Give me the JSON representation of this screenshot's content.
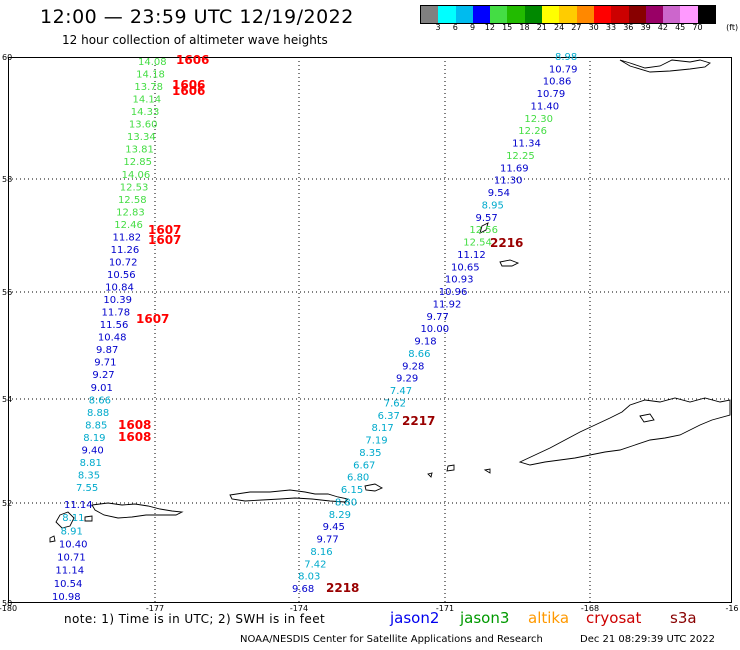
{
  "title": "12:00 — 23:59 UTC 12/19/2022",
  "subtitle": "12 hour collection of altimeter wave heights",
  "color_scale": {
    "unit": "(ft)",
    "bins": [
      {
        "label": "3",
        "color": "#808080"
      },
      {
        "label": "6",
        "color": "#00ffff"
      },
      {
        "label": "9",
        "color": "#00bbee"
      },
      {
        "label": "12",
        "color": "#0000ff"
      },
      {
        "label": "15",
        "color": "#44dd44"
      },
      {
        "label": "18",
        "color": "#22bb00"
      },
      {
        "label": "21",
        "color": "#008800"
      },
      {
        "label": "24",
        "color": "#ffff00"
      },
      {
        "label": "27",
        "color": "#ffcc00"
      },
      {
        "label": "30",
        "color": "#ff8800"
      },
      {
        "label": "33",
        "color": "#ff0000"
      },
      {
        "label": "36",
        "color": "#cc0000"
      },
      {
        "label": "39",
        "color": "#880000"
      },
      {
        "label": "42",
        "color": "#990066"
      },
      {
        "label": "45",
        "color": "#cc66cc"
      },
      {
        "label": "70",
        "color": "#ff99ff"
      },
      {
        "label": "",
        "color": "#000000"
      }
    ]
  },
  "axes": {
    "lat_labels": [
      "60",
      "58",
      "56",
      "54",
      "52",
      "50"
    ],
    "lon_labels": [
      "-180",
      "-177",
      "-174",
      "-171",
      "-168",
      "-16"
    ]
  },
  "track_colors": {
    "green": "#44dd44",
    "blue": "#0000cc",
    "cyan": "#00aacc",
    "red": "#ff0000",
    "darkred": "#990000"
  },
  "track_west_upper": [
    {
      "v": "14.08",
      "c": "green"
    },
    {
      "v": "14.18",
      "c": "green"
    },
    {
      "v": "13.78",
      "c": "green"
    },
    {
      "v": "14.14",
      "c": "green"
    },
    {
      "v": "14.33",
      "c": "green"
    },
    {
      "v": "13.60",
      "c": "green"
    },
    {
      "v": "13.34",
      "c": "green"
    },
    {
      "v": "13.81",
      "c": "green"
    },
    {
      "v": "12.85",
      "c": "green"
    },
    {
      "v": "14.06",
      "c": "green"
    },
    {
      "v": "12.53",
      "c": "green"
    },
    {
      "v": "12.58",
      "c": "green"
    },
    {
      "v": "12.83",
      "c": "green"
    },
    {
      "v": "12.46",
      "c": "green"
    },
    {
      "v": "11.82",
      "c": "blue"
    },
    {
      "v": "11.26",
      "c": "blue"
    },
    {
      "v": "10.72",
      "c": "blue"
    },
    {
      "v": "10.56",
      "c": "blue"
    },
    {
      "v": "10.84",
      "c": "blue"
    },
    {
      "v": "10.39",
      "c": "blue"
    },
    {
      "v": "11.78",
      "c": "blue"
    },
    {
      "v": "11.56",
      "c": "blue"
    },
    {
      "v": "10.48",
      "c": "blue"
    },
    {
      "v": "9.87",
      "c": "blue"
    },
    {
      "v": "9.71",
      "c": "blue"
    },
    {
      "v": "9.27",
      "c": "blue"
    },
    {
      "v": "9.01",
      "c": "blue"
    },
    {
      "v": "8.66",
      "c": "cyan"
    },
    {
      "v": "8.88",
      "c": "cyan"
    },
    {
      "v": "8.85",
      "c": "cyan"
    },
    {
      "v": "8.19",
      "c": "cyan"
    },
    {
      "v": "9.40",
      "c": "blue"
    },
    {
      "v": "8.81",
      "c": "cyan"
    },
    {
      "v": "8.35",
      "c": "cyan"
    },
    {
      "v": "7.55",
      "c": "cyan"
    }
  ],
  "track_west_lower": [
    {
      "v": "11.14",
      "c": "blue"
    },
    {
      "v": "8.11",
      "c": "cyan"
    },
    {
      "v": "8.91",
      "c": "cyan"
    },
    {
      "v": "10.40",
      "c": "blue"
    },
    {
      "v": "10.71",
      "c": "blue"
    },
    {
      "v": "11.14",
      "c": "blue"
    },
    {
      "v": "10.54",
      "c": "blue"
    },
    {
      "v": "10.98",
      "c": "blue"
    }
  ],
  "track_east": [
    {
      "v": "8.98",
      "c": "cyan"
    },
    {
      "v": "10.79",
      "c": "blue"
    },
    {
      "v": "10.86",
      "c": "blue"
    },
    {
      "v": "10.79",
      "c": "blue"
    },
    {
      "v": "11.40",
      "c": "blue"
    },
    {
      "v": "12.30",
      "c": "green"
    },
    {
      "v": "12.26",
      "c": "green"
    },
    {
      "v": "11.34",
      "c": "blue"
    },
    {
      "v": "12.25",
      "c": "green"
    },
    {
      "v": "11.69",
      "c": "blue"
    },
    {
      "v": "11.30",
      "c": "blue"
    },
    {
      "v": "9.54",
      "c": "blue"
    },
    {
      "v": "8.95",
      "c": "cyan"
    },
    {
      "v": "9.57",
      "c": "blue"
    },
    {
      "v": "12.56",
      "c": "green"
    },
    {
      "v": "12.54",
      "c": "green"
    },
    {
      "v": "11.12",
      "c": "blue"
    },
    {
      "v": "10.65",
      "c": "blue"
    },
    {
      "v": "10.93",
      "c": "blue"
    },
    {
      "v": "10.96",
      "c": "blue"
    },
    {
      "v": "11.92",
      "c": "blue"
    },
    {
      "v": "9.77",
      "c": "blue"
    },
    {
      "v": "10.00",
      "c": "blue"
    },
    {
      "v": "9.18",
      "c": "blue"
    },
    {
      "v": "8.66",
      "c": "cyan"
    },
    {
      "v": "9.28",
      "c": "blue"
    },
    {
      "v": "9.29",
      "c": "blue"
    },
    {
      "v": "7.47",
      "c": "cyan"
    },
    {
      "v": "7.62",
      "c": "cyan"
    },
    {
      "v": "6.37",
      "c": "cyan"
    },
    {
      "v": "8.17",
      "c": "cyan"
    },
    {
      "v": "7.19",
      "c": "cyan"
    },
    {
      "v": "8.35",
      "c": "cyan"
    },
    {
      "v": "6.67",
      "c": "cyan"
    },
    {
      "v": "6.80",
      "c": "cyan"
    },
    {
      "v": "6.15",
      "c": "cyan"
    },
    {
      "v": "8.80",
      "c": "cyan"
    },
    {
      "v": "8.29",
      "c": "cyan"
    },
    {
      "v": "9.45",
      "c": "blue"
    },
    {
      "v": "9.77",
      "c": "blue"
    },
    {
      "v": "8.16",
      "c": "cyan"
    },
    {
      "v": "7.42",
      "c": "cyan"
    },
    {
      "v": "8.03",
      "c": "cyan"
    },
    {
      "v": "9.68",
      "c": "blue"
    }
  ],
  "time_tags": [
    {
      "v": "1606",
      "c": "red"
    },
    {
      "v": "1606",
      "c": "red"
    },
    {
      "v": "1606",
      "c": "red"
    },
    {
      "v": "1607",
      "c": "red"
    },
    {
      "v": "1607",
      "c": "red"
    },
    {
      "v": "1607",
      "c": "red"
    },
    {
      "v": "1608",
      "c": "red"
    },
    {
      "v": "1608",
      "c": "red"
    },
    {
      "v": "2216",
      "c": "darkred"
    },
    {
      "v": "2217",
      "c": "darkred"
    },
    {
      "v": "2218",
      "c": "darkred"
    }
  ],
  "footer": {
    "note": "note: 1) Time is in UTC; 2) SWH is in feet",
    "missions": [
      {
        "name": "jason2",
        "color": "#0000ee"
      },
      {
        "name": "jason3",
        "color": "#009900"
      },
      {
        "name": "altika",
        "color": "#ff9900"
      },
      {
        "name": "cryosat",
        "color": "#cc0000"
      },
      {
        "name": "s3a",
        "color": "#880000"
      }
    ],
    "credit": "NOAA/NESDIS Center for Satellite Applications and Research",
    "timestamp": "Dec 21 08:29:39 UTC 2022"
  }
}
